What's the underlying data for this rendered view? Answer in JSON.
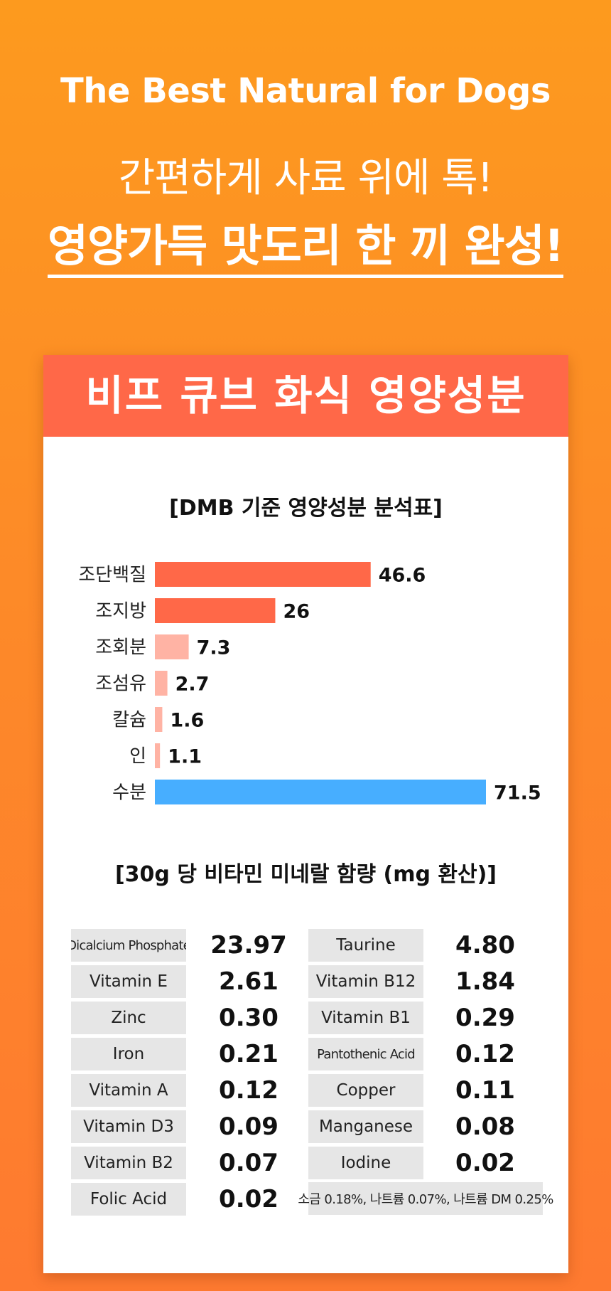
{
  "hero": {
    "title_en": "The Best Natural for Dogs",
    "line1": "간편하게 사료 위에 톡!",
    "line2": "영양가득 맛도리 한 끼 완성!"
  },
  "card": {
    "header": "비프 큐브 화식 영양성분",
    "chart_title": "[DMB 기준 영양성분 분석표]",
    "table_title": "[30g 당 비타민 미네랄 함량 (mg 환산)]",
    "note": "소금 0.18%, 나트륨 0.07%, 나트륨 DM 0.25%"
  },
  "chart_data": {
    "type": "bar",
    "orientation": "horizontal",
    "title": "[DMB 기준 영양성분 분석표]",
    "categories": [
      "조단백질",
      "조지방",
      "조회분",
      "조섬유",
      "칼슘",
      "인",
      "수분"
    ],
    "values": [
      46.6,
      26,
      7.3,
      2.7,
      1.6,
      1.1,
      71.5
    ],
    "value_labels": [
      "46.6",
      "26",
      "7.3",
      "2.7",
      "1.6",
      "1.1",
      "71.5"
    ],
    "colors": [
      "#ff6848",
      "#ff6848",
      "#ffb3a4",
      "#ffb3a4",
      "#ffb3a4",
      "#ffb3a4",
      "#47aeff"
    ],
    "xlim": [
      0,
      71.5
    ],
    "grid": false,
    "legend": "none"
  },
  "vitamins": {
    "left": [
      {
        "name": "Dicalcium Phosphate",
        "value": "23.97"
      },
      {
        "name": "Vitamin E",
        "value": "2.61"
      },
      {
        "name": "Zinc",
        "value": "0.30"
      },
      {
        "name": "Iron",
        "value": "0.21"
      },
      {
        "name": "Vitamin A",
        "value": "0.12"
      },
      {
        "name": "Vitamin D3",
        "value": "0.09"
      },
      {
        "name": "Vitamin B2",
        "value": "0.07"
      },
      {
        "name": "Folic Acid",
        "value": "0.02"
      }
    ],
    "right": [
      {
        "name": "Taurine",
        "value": "4.80"
      },
      {
        "name": "Vitamin B12",
        "value": "1.84"
      },
      {
        "name": "Vitamin B1",
        "value": "0.29"
      },
      {
        "name": "Pantothenic Acid",
        "value": "0.12"
      },
      {
        "name": "Copper",
        "value": "0.11"
      },
      {
        "name": "Manganese",
        "value": "0.08"
      },
      {
        "name": "Iodine",
        "value": "0.02"
      }
    ]
  },
  "colors": {
    "background_top": "#fd9a1e",
    "background_bottom": "#fe7a30",
    "header": "#ff6848",
    "bar_primary": "#ff6848",
    "bar_secondary": "#ffb3a4",
    "bar_water": "#47aeff",
    "table_cell": "#e6e6e6"
  }
}
